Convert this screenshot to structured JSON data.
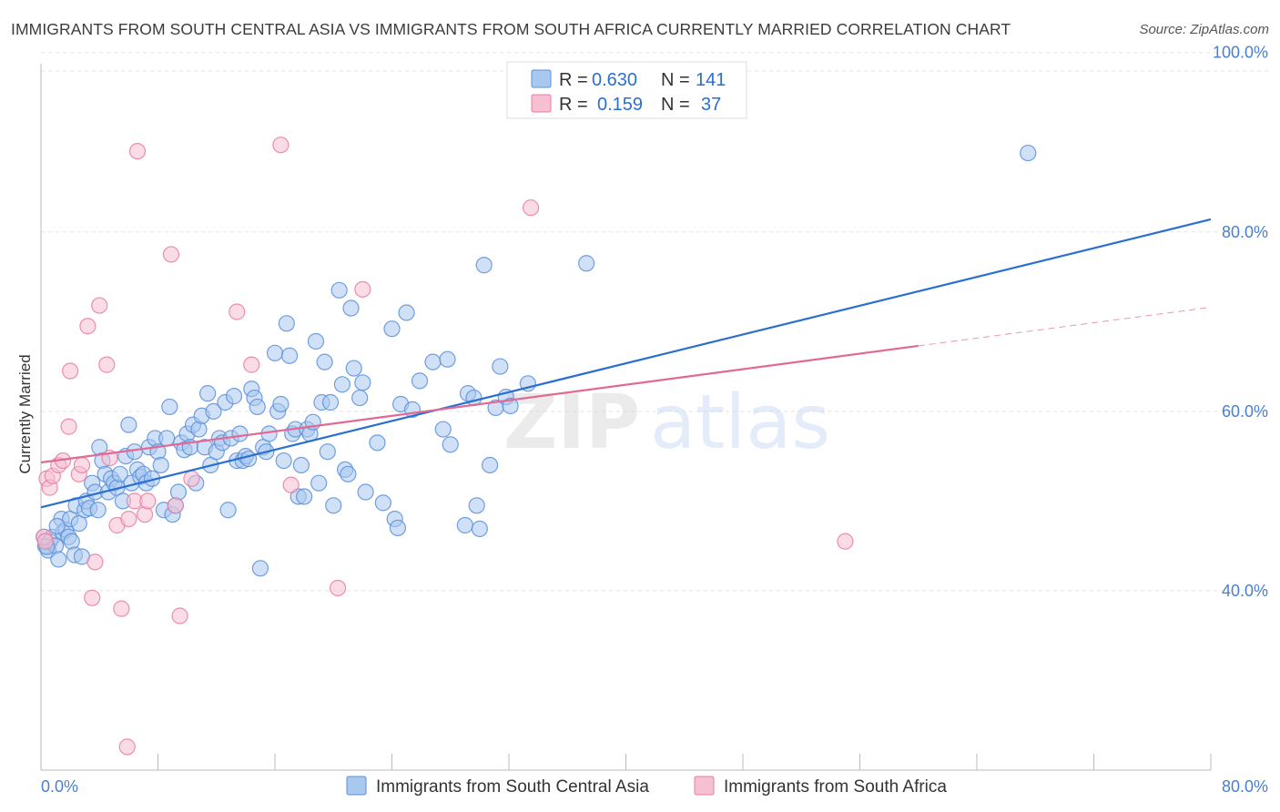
{
  "header": {
    "title": "IMMIGRANTS FROM SOUTH CENTRAL ASIA VS IMMIGRANTS FROM SOUTH AFRICA CURRENTLY MARRIED CORRELATION CHART",
    "source": "Source: ZipAtlas.com"
  },
  "watermark": {
    "zip": "ZIP",
    "atlas": "atlas"
  },
  "legend_top": {
    "rows": [
      {
        "r_label": "R =",
        "r_value": "0.630",
        "n_label": "N =",
        "n_value": "141"
      },
      {
        "r_label": "R =",
        "r_value": "0.159",
        "n_label": "N =",
        "n_value": "37"
      }
    ]
  },
  "colors": {
    "blue_fill": "#a9c8f0",
    "blue_stroke": "#5b8fd8",
    "blue_line": "#2a6fd0",
    "pink_fill": "#f6bfd2",
    "pink_stroke": "#e87da0",
    "pink_line": "#e06a95",
    "value_text": "#2a6fd0",
    "grid": "#e3e3e3"
  },
  "chart_data": {
    "type": "scatter",
    "title": "IMMIGRANTS FROM SOUTH CENTRAL ASIA VS IMMIGRANTS FROM SOUTH AFRICA CURRENTLY MARRIED CORRELATION CHART",
    "xlabel": "",
    "ylabel": "Currently Married",
    "xlim": [
      0,
      80
    ],
    "ylim": [
      20,
      102
    ],
    "x_tick_labels": [
      "0.0%",
      "80.0%"
    ],
    "y_ticks": [
      40,
      60,
      80,
      100
    ],
    "y_tick_labels": [
      "40.0%",
      "60.0%",
      "80.0%",
      "100.0%"
    ],
    "grid": true,
    "legend_position": "top-center",
    "series": [
      {
        "name": "Immigrants from South Central Asia",
        "color": "#a9c8f0",
        "trend": {
          "x": [
            0,
            80
          ],
          "y": [
            49.3,
            81.4
          ]
        },
        "points": [
          [
            0.2,
            46
          ],
          [
            0.3,
            45
          ],
          [
            0.5,
            44.5
          ],
          [
            0.6,
            45.5
          ],
          [
            0.8,
            46
          ],
          [
            1,
            45
          ],
          [
            1.2,
            43.5
          ],
          [
            1.4,
            48
          ],
          [
            1.5,
            46.5
          ],
          [
            1.7,
            46.8
          ],
          [
            1.9,
            46
          ],
          [
            2,
            48
          ],
          [
            2.1,
            45.5
          ],
          [
            2.3,
            44
          ],
          [
            2.4,
            49.5
          ],
          [
            2.6,
            47.5
          ],
          [
            2.8,
            43.8
          ],
          [
            3,
            49
          ],
          [
            3.1,
            50
          ],
          [
            3.3,
            49.2
          ],
          [
            3.5,
            52
          ],
          [
            3.7,
            51
          ],
          [
            3.9,
            49
          ],
          [
            4,
            56
          ],
          [
            4.2,
            54.5
          ],
          [
            4.4,
            53
          ],
          [
            4.6,
            51
          ],
          [
            4.8,
            52.5
          ],
          [
            5,
            52
          ],
          [
            5.2,
            51.5
          ],
          [
            5.4,
            53
          ],
          [
            5.6,
            50
          ],
          [
            5.8,
            55
          ],
          [
            6,
            58.5
          ],
          [
            6.2,
            52
          ],
          [
            6.4,
            55.5
          ],
          [
            6.6,
            53.5
          ],
          [
            6.8,
            52.7
          ],
          [
            7,
            53
          ],
          [
            7.2,
            52
          ],
          [
            7.4,
            56
          ],
          [
            7.6,
            52.5
          ],
          [
            7.8,
            57
          ],
          [
            8,
            55.5
          ],
          [
            8.2,
            54
          ],
          [
            8.4,
            49
          ],
          [
            8.6,
            57
          ],
          [
            8.8,
            60.5
          ],
          [
            9,
            48.5
          ],
          [
            9.2,
            49.5
          ],
          [
            9.4,
            51
          ],
          [
            9.6,
            56.5
          ],
          [
            9.8,
            55.7
          ],
          [
            10,
            57.5
          ],
          [
            10.2,
            56
          ],
          [
            10.4,
            58.5
          ],
          [
            10.6,
            52
          ],
          [
            10.8,
            58
          ],
          [
            11,
            59.5
          ],
          [
            11.2,
            56
          ],
          [
            11.4,
            62
          ],
          [
            11.6,
            54
          ],
          [
            11.8,
            60
          ],
          [
            12,
            55.5
          ],
          [
            12.2,
            57
          ],
          [
            12.4,
            56.5
          ],
          [
            12.6,
            61
          ],
          [
            12.8,
            49
          ],
          [
            13,
            57
          ],
          [
            13.2,
            61.7
          ],
          [
            13.4,
            54.5
          ],
          [
            13.6,
            57.5
          ],
          [
            13.8,
            54.5
          ],
          [
            14,
            55
          ],
          [
            14.2,
            54.7
          ],
          [
            14.4,
            62.5
          ],
          [
            14.6,
            61.5
          ],
          [
            14.8,
            60.5
          ],
          [
            15,
            42.5
          ],
          [
            15.2,
            56
          ],
          [
            15.4,
            55.5
          ],
          [
            15.6,
            57.5
          ],
          [
            16,
            66.5
          ],
          [
            16.2,
            60
          ],
          [
            16.4,
            60.8
          ],
          [
            16.6,
            54.5
          ],
          [
            16.8,
            69.8
          ],
          [
            17,
            66.2
          ],
          [
            17.2,
            57.5
          ],
          [
            17.4,
            58
          ],
          [
            17.6,
            50.5
          ],
          [
            17.8,
            54
          ],
          [
            18,
            50.5
          ],
          [
            18.2,
            58
          ],
          [
            18.4,
            57.5
          ],
          [
            18.6,
            58.8
          ],
          [
            18.8,
            67.8
          ],
          [
            19,
            52
          ],
          [
            19.2,
            61
          ],
          [
            19.4,
            65.5
          ],
          [
            19.6,
            55.5
          ],
          [
            19.8,
            61
          ],
          [
            20,
            49.5
          ],
          [
            20.4,
            73.5
          ],
          [
            20.6,
            63
          ],
          [
            20.8,
            53.5
          ],
          [
            21,
            53
          ],
          [
            21.2,
            71.5
          ],
          [
            21.4,
            64.8
          ],
          [
            21.8,
            61.5
          ],
          [
            22,
            63.2
          ],
          [
            22.2,
            51
          ],
          [
            23,
            56.5
          ],
          [
            23.4,
            49.8
          ],
          [
            24,
            69.2
          ],
          [
            24.2,
            48
          ],
          [
            24.4,
            47
          ],
          [
            24.6,
            60.8
          ],
          [
            25,
            71
          ],
          [
            25.4,
            60.2
          ],
          [
            25.9,
            63.4
          ],
          [
            26.8,
            65.5
          ],
          [
            27.5,
            58
          ],
          [
            27.8,
            65.8
          ],
          [
            28,
            56.3
          ],
          [
            29,
            47.3
          ],
          [
            29.2,
            62
          ],
          [
            29.6,
            61.5
          ],
          [
            29.8,
            49.5
          ],
          [
            30,
            46.9
          ],
          [
            30.3,
            76.3
          ],
          [
            30.7,
            54
          ],
          [
            31.1,
            60.4
          ],
          [
            31.4,
            65
          ],
          [
            31.8,
            61.6
          ],
          [
            32.1,
            60.6
          ],
          [
            33.3,
            63.1
          ],
          [
            37.3,
            76.5
          ],
          [
            67.5,
            88.8
          ],
          [
            0.4,
            44.9
          ],
          [
            1.1,
            47.2
          ]
        ]
      },
      {
        "name": "Immigrants from South Africa",
        "color": "#f6bfd2",
        "trend": {
          "x": [
            0,
            60
          ],
          "y": [
            54.3,
            67.3
          ]
        },
        "trend_extension": {
          "x": [
            60,
            80
          ],
          "y": [
            67.3,
            71.6
          ]
        },
        "points": [
          [
            0.2,
            46
          ],
          [
            0.3,
            45.5
          ],
          [
            0.4,
            52.5
          ],
          [
            0.6,
            51.5
          ],
          [
            0.8,
            52.8
          ],
          [
            1.2,
            54
          ],
          [
            1.5,
            54.5
          ],
          [
            1.9,
            58.3
          ],
          [
            2,
            64.5
          ],
          [
            2.6,
            53
          ],
          [
            2.8,
            54
          ],
          [
            3.2,
            69.5
          ],
          [
            3.5,
            39.2
          ],
          [
            3.7,
            43.2
          ],
          [
            4,
            71.8
          ],
          [
            4.5,
            65.2
          ],
          [
            4.7,
            54.8
          ],
          [
            5.2,
            47.3
          ],
          [
            5.5,
            38
          ],
          [
            6,
            48
          ],
          [
            6.4,
            50
          ],
          [
            6.6,
            89
          ],
          [
            7.1,
            48.5
          ],
          [
            7.3,
            50
          ],
          [
            8.9,
            77.5
          ],
          [
            9.2,
            49.5
          ],
          [
            9.5,
            37.2
          ],
          [
            10.3,
            52.5
          ],
          [
            13.4,
            71.1
          ],
          [
            14.4,
            65.2
          ],
          [
            16.4,
            89.7
          ],
          [
            17.1,
            51.8
          ],
          [
            20.3,
            40.3
          ],
          [
            22,
            73.6
          ],
          [
            33.5,
            82.7
          ],
          [
            55,
            45.5
          ],
          [
            5.9,
            22.6
          ]
        ]
      }
    ]
  }
}
